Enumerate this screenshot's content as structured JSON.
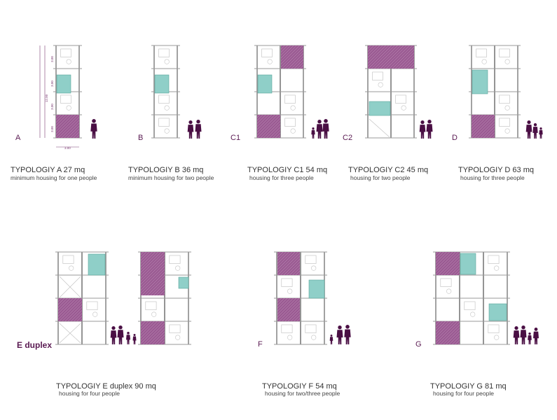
{
  "colors": {
    "purple": "#8e4a86",
    "purple_hatch": "#b07aaa",
    "teal": "#8fcfc8",
    "figure": "#4a0f44",
    "wall": "#9a9a9a",
    "label": "#5a1a52"
  },
  "dimensions": {
    "total_height": "12.00",
    "segment_1": "3.00",
    "segment_2": "3.00",
    "segment_3": "3.00",
    "segment_4": "3.00",
    "width": "3.00"
  },
  "typologies": [
    {
      "letter": "A",
      "title": "TYPOLOGIY A 27 mq",
      "subtitle": "minimum housing for one people"
    },
    {
      "letter": "B",
      "title": "TYPOLOGIY B  36 mq",
      "subtitle": "minimum housing for two people"
    },
    {
      "letter": "C1",
      "title": "TYPOLOGIY C1  54 mq",
      "subtitle": "housing for three people"
    },
    {
      "letter": "C2",
      "title": "TYPOLOGIY C2  45 mq",
      "subtitle": "housing for two people"
    },
    {
      "letter": "D",
      "title": "TYPOLOGIY D  63 mq",
      "subtitle": "housing for three people"
    },
    {
      "letter": "E duplex",
      "title": "TYPOLOGIY E duplex 90 mq",
      "subtitle": "housing for four people"
    },
    {
      "letter": "F",
      "title": "TYPOLOGIY F 54 mq",
      "subtitle": "housing for two/three people"
    },
    {
      "letter": "G",
      "title": "TYPOLOGIY G 81 mq",
      "subtitle": "housing for four people"
    }
  ]
}
